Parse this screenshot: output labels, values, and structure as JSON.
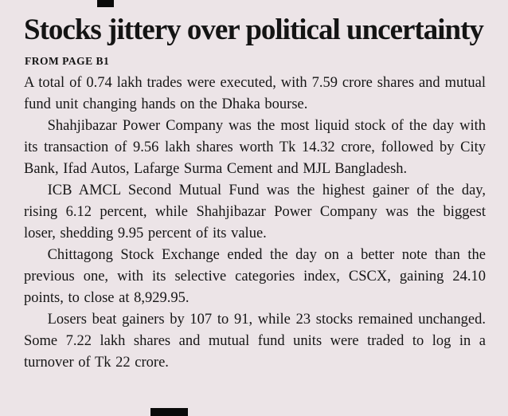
{
  "colors": {
    "background": "#ece4e7",
    "ink": "#141414"
  },
  "article": {
    "headline": "Stocks jittery over political uncertainty",
    "kicker": "FROM PAGE B1",
    "paragraphs": [
      "A total of 0.74 lakh trades were executed, with 7.59 crore shares and mutual fund unit changing hands on the Dhaka bourse.",
      "Shahjibazar Power Company was the most liquid stock of the day with its transaction of 9.56 lakh shares worth Tk 14.32 crore, followed by City Bank, Ifad Autos, Lafarge Surma Cement and MJL Bangladesh.",
      "ICB AMCL Second Mutual Fund was the highest gainer of the day, rising 6.12 percent, while Shahjibazar Power Company was the biggest loser, shedding 9.95 percent of its value.",
      "Chittagong Stock Exchange ended the day on a better note than the previous one, with its selective categories index, CSCX, gaining 24.10 points, to close at 8,929.95.",
      "Losers beat gainers by 107 to 91, while 23 stocks remained unchanged. Some 7.22 lakh shares and mutual fund units were traded to log in a turnover of Tk 22 crore."
    ]
  }
}
